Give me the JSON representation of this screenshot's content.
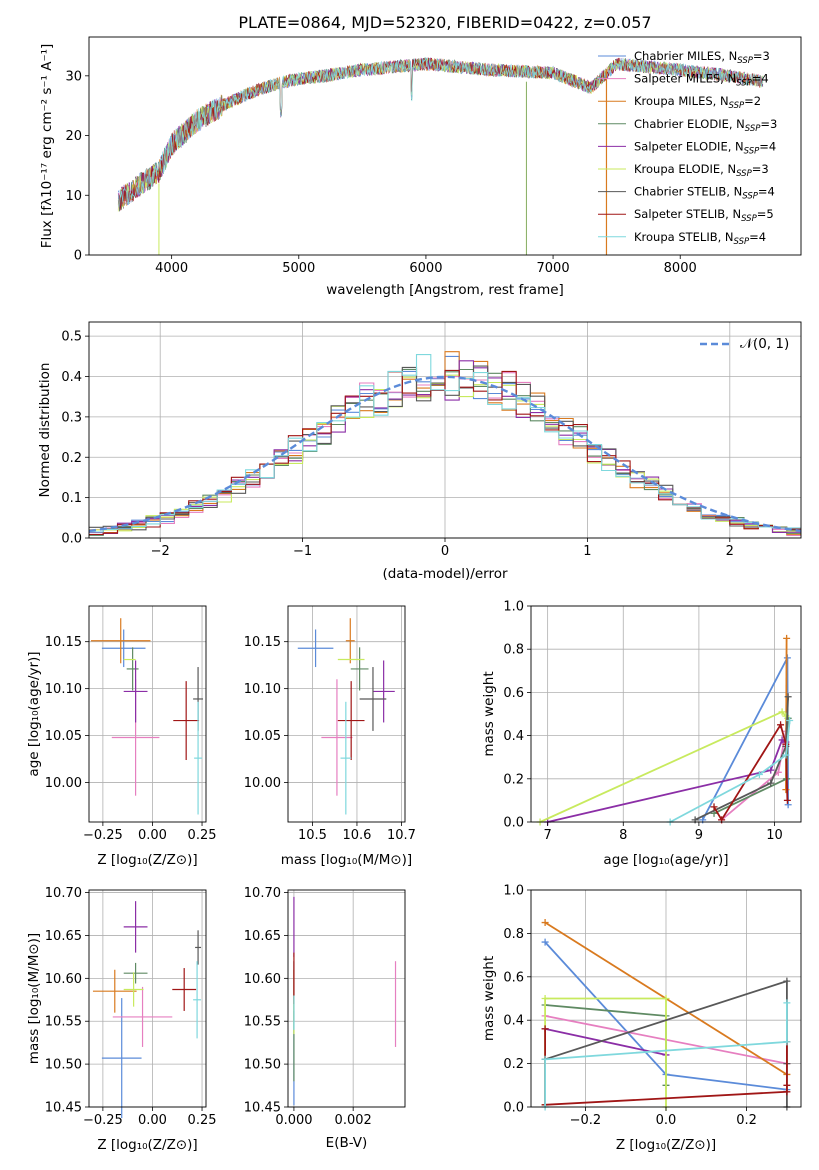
{
  "title": "PLATE=0864, MJD=52320, FIBERID=0422, z=0.057",
  "colors": [
    "#5b8bd9",
    "#e67fc0",
    "#d97a1f",
    "#5f8a63",
    "#8b2ea6",
    "#c8ea5e",
    "#585858",
    "#a01616",
    "#7fd8dd"
  ],
  "legend_labels": [
    {
      "main": "Chabrier MILES, N",
      "sub": "SSP",
      "rest": "=3"
    },
    {
      "main": "Salpeter MILES, N",
      "sub": "SSP",
      "rest": "=4"
    },
    {
      "main": "Kroupa MILES, N",
      "sub": "SSP",
      "rest": "=2"
    },
    {
      "main": "Chabrier ELODIE, N",
      "sub": "SSP",
      "rest": "=3"
    },
    {
      "main": "Salpeter ELODIE, N",
      "sub": "SSP",
      "rest": "=4"
    },
    {
      "main": "Kroupa ELODIE, N",
      "sub": "SSP",
      "rest": "=3"
    },
    {
      "main": "Chabrier STELIB, N",
      "sub": "SSP",
      "rest": "=4"
    },
    {
      "main": "Salpeter STELIB, N",
      "sub": "SSP",
      "rest": "=5"
    },
    {
      "main": "Kroupa STELIB, N",
      "sub": "SSP",
      "rest": "=4"
    }
  ],
  "chart_data": [
    {
      "id": "spectrum",
      "type": "line",
      "xlabel": "wavelength [Angstrom, rest frame]",
      "ylabel": "Flux [fλ10⁻¹⁷ erg cm⁻² s⁻¹ A⁻¹]",
      "xlim": [
        3350,
        8950
      ],
      "ylim": [
        0,
        36.5
      ],
      "xticks": [
        4000,
        5000,
        6000,
        7000,
        8000
      ],
      "yticks": [
        0,
        10,
        20,
        30
      ],
      "continuum_anchors": {
        "x": [
          3580,
          3700,
          3900,
          4000,
          4200,
          4400,
          4600,
          4800,
          5000,
          5200,
          5500,
          6000,
          6500,
          7000,
          7300,
          7500,
          8000,
          8400,
          8650
        ],
        "y": [
          9,
          11,
          14,
          18.5,
          22.5,
          25,
          27,
          28.5,
          29.5,
          30,
          31,
          32,
          31,
          30.5,
          28,
          32,
          31,
          30,
          29
        ]
      },
      "legend_position": "upper right"
    },
    {
      "id": "residuals",
      "type": "step",
      "xlabel": "(data-model)/error",
      "ylabel": "Normed distribution",
      "xlim": [
        -2.5,
        2.5
      ],
      "ylim": [
        0,
        0.535
      ],
      "xticks": [
        -2,
        -1,
        0,
        1,
        2
      ],
      "yticks": [
        0.0,
        0.1,
        0.2,
        0.3,
        0.4,
        0.5
      ],
      "legend": "𝒩(0, 1)",
      "normal_curve": {
        "mean": 0,
        "std": 1
      },
      "bins": {
        "start": -2.5,
        "width": 0.1,
        "count": 50
      }
    },
    {
      "id": "age_vs_Z",
      "type": "errorbar",
      "xlabel": "Z [log₁₀(Z/Z⊙)]",
      "ylabel": "age  [log₁₀(age/yr)]",
      "xlim": [
        -0.32,
        0.27
      ],
      "ylim": [
        9.958,
        10.188
      ],
      "xticks": [
        -0.25,
        0.0,
        0.25
      ],
      "yticks": [
        10.0,
        10.05,
        10.1,
        10.15
      ],
      "points": [
        {
          "x": -0.145,
          "xerr": 0.11,
          "y": 10.143,
          "yerr": 0.02
        },
        {
          "x": -0.085,
          "xerr": 0.12,
          "y": 10.048,
          "yerr": 0.062
        },
        {
          "x": -0.16,
          "xerr": 0.15,
          "y": 10.151,
          "yerr": 0.024
        },
        {
          "x": -0.1,
          "xerr": 0.03,
          "y": 10.121,
          "yerr": 0.023
        },
        {
          "x": -0.085,
          "xerr": 0.06,
          "y": 10.097,
          "yerr": 0.033
        },
        {
          "x": -0.115,
          "xerr": 0.03,
          "y": 10.131,
          "yerr": 0.0
        },
        {
          "x": 0.23,
          "xerr": 0.025,
          "y": 10.089,
          "yerr": 0.034
        },
        {
          "x": 0.17,
          "xerr": 0.065,
          "y": 10.066,
          "yerr": 0.042
        },
        {
          "x": 0.23,
          "xerr": 0.02,
          "y": 10.026,
          "yerr": 0.06
        }
      ]
    },
    {
      "id": "age_vs_mass",
      "type": "errorbar",
      "xlabel": "mass [log₁₀(M/M⊙)]",
      "ylabel": "",
      "xlim": [
        10.445,
        10.708
      ],
      "ylim": [
        9.958,
        10.188
      ],
      "xticks": [
        10.5,
        10.6,
        10.7
      ],
      "yticks": [
        10.0,
        10.05,
        10.1,
        10.15
      ],
      "points": [
        {
          "x": 10.507,
          "xerr": 0.04,
          "y": 10.143,
          "yerr": 0.02
        },
        {
          "x": 10.555,
          "xerr": 0.035,
          "y": 10.048,
          "yerr": 0.062
        },
        {
          "x": 10.585,
          "xerr": 0.01,
          "y": 10.151,
          "yerr": 0.024
        },
        {
          "x": 10.606,
          "xerr": 0.02,
          "y": 10.121,
          "yerr": 0.023
        },
        {
          "x": 10.66,
          "xerr": 0.025,
          "y": 10.097,
          "yerr": 0.033
        },
        {
          "x": 10.587,
          "xerr": 0.03,
          "y": 10.131,
          "yerr": 0.0
        },
        {
          "x": 10.636,
          "xerr": 0.03,
          "y": 10.089,
          "yerr": 0.034
        },
        {
          "x": 10.587,
          "xerr": 0.03,
          "y": 10.066,
          "yerr": 0.042
        },
        {
          "x": 10.575,
          "xerr": 0.012,
          "y": 10.026,
          "yerr": 0.06
        }
      ]
    },
    {
      "id": "weight_vs_age",
      "type": "line",
      "xlabel": "age  [log₁₀(age/yr)]",
      "ylabel": "mass weight",
      "xlim": [
        6.78,
        10.35
      ],
      "ylim": [
        0,
        1
      ],
      "xticks": [
        7,
        8,
        9,
        10
      ],
      "yticks": [
        0.0,
        0.2,
        0.4,
        0.6,
        0.8,
        1.0
      ],
      "series": [
        {
          "x": [
            9.05,
            10.17,
            10.18
          ],
          "y": [
            0.01,
            0.76,
            0.08
          ]
        },
        {
          "x": [
            9.3,
            10.05,
            10.15
          ],
          "y": [
            0.01,
            0.23,
            0.42
          ]
        },
        {
          "x": [
            10.15,
            10.16
          ],
          "y": [
            0.15,
            0.85
          ]
        },
        {
          "x": [
            9.2,
            10.16,
            10.18
          ],
          "y": [
            0.04,
            0.2,
            0.48
          ]
        },
        {
          "x": [
            7.0,
            9.95,
            10.1,
            10.15
          ],
          "y": [
            0.0,
            0.24,
            0.38,
            0.37
          ]
        },
        {
          "x": [
            6.9,
            10.1,
            10.15
          ],
          "y": [
            0.0,
            0.51,
            0.49
          ]
        },
        {
          "x": [
            8.95,
            9.95,
            10.15,
            10.18
          ],
          "y": [
            0.01,
            0.18,
            0.35,
            0.58
          ]
        },
        {
          "x": [
            9.2,
            9.3,
            10.08,
            10.15,
            10.17
          ],
          "y": [
            0.07,
            0.01,
            0.45,
            0.36,
            0.1
          ]
        },
        {
          "x": [
            8.62,
            9.8,
            10.15,
            10.2
          ],
          "y": [
            0.0,
            0.22,
            0.31,
            0.47
          ]
        }
      ]
    },
    {
      "id": "mass_vs_Z",
      "type": "errorbar",
      "xlabel": "Z [log₁₀(Z/Z⊙)]",
      "ylabel": "mass [log₁₀(M/M⊙)]",
      "xlim": [
        -0.32,
        0.27
      ],
      "ylim": [
        10.45,
        10.703
      ],
      "xticks": [
        -0.25,
        0.0,
        0.25
      ],
      "yticks": [
        10.45,
        10.5,
        10.55,
        10.6,
        10.65,
        10.7
      ],
      "points": [
        {
          "x": -0.155,
          "xerr": 0.1,
          "y": 10.507,
          "yerr": 0.07
        },
        {
          "x": -0.05,
          "xerr": 0.15,
          "y": 10.555,
          "yerr": 0.035
        },
        {
          "x": -0.19,
          "xerr": 0.11,
          "y": 10.585,
          "yerr": 0.025
        },
        {
          "x": -0.085,
          "xerr": 0.06,
          "y": 10.606,
          "yerr": 0.012
        },
        {
          "x": -0.085,
          "xerr": 0.06,
          "y": 10.66,
          "yerr": 0.03
        },
        {
          "x": -0.095,
          "xerr": 0.05,
          "y": 10.587,
          "yerr": 0.02
        },
        {
          "x": 0.23,
          "xerr": 0.015,
          "y": 10.636,
          "yerr": 0.02
        },
        {
          "x": 0.16,
          "xerr": 0.06,
          "y": 10.587,
          "yerr": 0.025
        },
        {
          "x": 0.225,
          "xerr": 0.02,
          "y": 10.575,
          "yerr": 0.045
        }
      ]
    },
    {
      "id": "mass_vs_EBV",
      "type": "errorbar",
      "xlabel": "E(B-V)",
      "ylabel": "",
      "xlim": [
        -0.0002,
        0.00375
      ],
      "ylim": [
        10.45,
        10.703
      ],
      "xticks": [
        0.0,
        0.002
      ],
      "xtick_labels": [
        "0.000",
        "0.002"
      ],
      "yticks": [
        10.45,
        10.5,
        10.55,
        10.6,
        10.65,
        10.7
      ],
      "points": [
        {
          "x": 0.0,
          "xerr": 0.0,
          "y": 10.507,
          "yerr": 0.055
        },
        {
          "x": 0.00343,
          "xerr": 0.0,
          "y": 10.57,
          "yerr": 0.05
        },
        {
          "x": 0.0,
          "xerr": 0.0,
          "y": 10.58,
          "yerr": 0.03
        },
        {
          "x": 0.0,
          "xerr": 0.0,
          "y": 10.53,
          "yerr": 0.05
        },
        {
          "x": 0.0,
          "xerr": 0.0,
          "y": 10.66,
          "yerr": 0.035
        },
        {
          "x": 0.0,
          "xerr": 0.0,
          "y": 10.555,
          "yerr": 0.02
        },
        {
          "x": 0.0,
          "xerr": 0.0,
          "y": 10.6,
          "yerr": 0.02
        },
        {
          "x": 0.0,
          "xerr": 0.0,
          "y": 10.6,
          "yerr": 0.03
        },
        {
          "x": 0.0,
          "xerr": 0.0,
          "y": 10.56,
          "yerr": 0.02
        }
      ]
    },
    {
      "id": "weight_vs_Z",
      "type": "line",
      "xlabel": "Z [log₁₀(Z/Z⊙)]",
      "ylabel": "mass weight",
      "xlim": [
        -0.335,
        0.335
      ],
      "ylim": [
        0,
        1
      ],
      "xticks": [
        -0.2,
        0.0,
        0.2
      ],
      "yticks": [
        0.0,
        0.2,
        0.4,
        0.6,
        0.8,
        1.0
      ],
      "series": [
        {
          "x": [
            -0.3,
            0.0,
            0.3
          ],
          "y": [
            0.76,
            0.15,
            0.08
          ]
        },
        {
          "x": [
            -0.3,
            0.3
          ],
          "y": [
            0.42,
            0.2
          ]
        },
        {
          "x": [
            -0.3,
            0.3
          ],
          "y": [
            0.85,
            0.15
          ]
        },
        {
          "x": [
            -0.3,
            0.0,
            0.0
          ],
          "y": [
            0.47,
            0.42,
            0.1
          ]
        },
        {
          "x": [
            -0.3,
            -0.3,
            0.0
          ],
          "y": [
            0.36,
            0.36,
            0.24
          ]
        },
        {
          "x": [
            -0.3,
            -0.3,
            0.0,
            0.0
          ],
          "y": [
            0.01,
            0.5,
            0.5,
            0.0
          ]
        },
        {
          "x": [
            -0.3,
            0.3,
            0.3,
            0.3
          ],
          "y": [
            0.22,
            0.58,
            0.2,
            0.0
          ]
        },
        {
          "x": [
            -0.3,
            -0.3,
            0.3,
            0.3,
            0.3
          ],
          "y": [
            0.36,
            0.01,
            0.07,
            0.1,
            0.3
          ]
        },
        {
          "x": [
            -0.3,
            -0.3,
            0.3,
            0.3
          ],
          "y": [
            0.0,
            0.22,
            0.3,
            0.48
          ]
        }
      ]
    }
  ]
}
